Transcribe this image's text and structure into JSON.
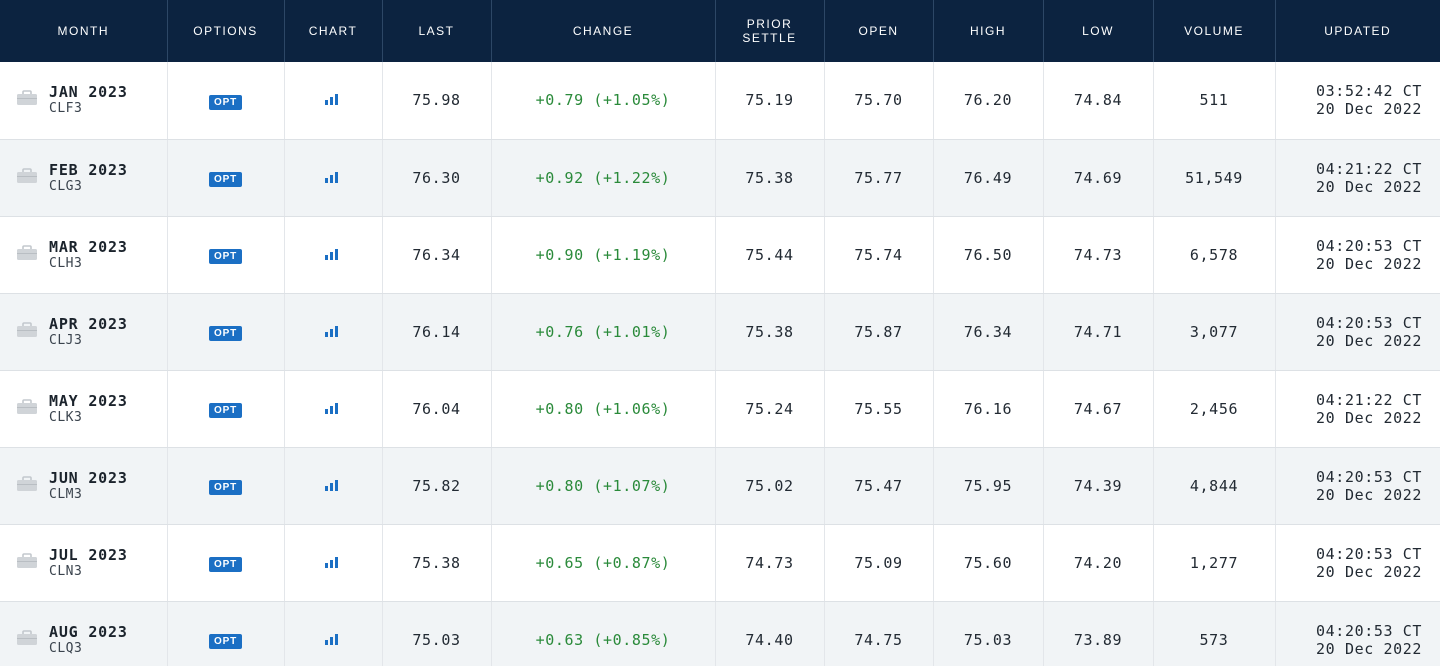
{
  "table": {
    "headers": {
      "month": "MONTH",
      "options": "OPTIONS",
      "chart": "CHART",
      "last": "LAST",
      "change": "CHANGE",
      "prior_settle_1": "PRIOR",
      "prior_settle_2": "SETTLE",
      "open": "OPEN",
      "high": "HIGH",
      "low": "LOW",
      "volume": "VOLUME",
      "updated": "UPDATED"
    },
    "colors": {
      "header_bg": "#0c2340",
      "opt_badge": "#1b6fc4",
      "chart_icon": "#1b6fc4",
      "change_positive": "#2a8a3a",
      "row_alt": "#f1f4f6"
    },
    "icons": {
      "month": "briefcase-icon",
      "chart": "bar-chart-icon"
    },
    "rows": [
      {
        "month": "JAN 2023",
        "code": "CLF3",
        "opt": "OPT",
        "last": "75.98",
        "change": "+0.79 (+1.05%)",
        "prior": "75.19",
        "open": "75.70",
        "high": "76.20",
        "low": "74.84",
        "volume": "511",
        "time": "03:52:42 CT",
        "date": "20 Dec 2022"
      },
      {
        "month": "FEB 2023",
        "code": "CLG3",
        "opt": "OPT",
        "last": "76.30",
        "change": "+0.92 (+1.22%)",
        "prior": "75.38",
        "open": "75.77",
        "high": "76.49",
        "low": "74.69",
        "volume": "51,549",
        "time": "04:21:22 CT",
        "date": "20 Dec 2022"
      },
      {
        "month": "MAR 2023",
        "code": "CLH3",
        "opt": "OPT",
        "last": "76.34",
        "change": "+0.90 (+1.19%)",
        "prior": "75.44",
        "open": "75.74",
        "high": "76.50",
        "low": "74.73",
        "volume": "6,578",
        "time": "04:20:53 CT",
        "date": "20 Dec 2022"
      },
      {
        "month": "APR 2023",
        "code": "CLJ3",
        "opt": "OPT",
        "last": "76.14",
        "change": "+0.76 (+1.01%)",
        "prior": "75.38",
        "open": "75.87",
        "high": "76.34",
        "low": "74.71",
        "volume": "3,077",
        "time": "04:20:53 CT",
        "date": "20 Dec 2022"
      },
      {
        "month": "MAY 2023",
        "code": "CLK3",
        "opt": "OPT",
        "last": "76.04",
        "change": "+0.80 (+1.06%)",
        "prior": "75.24",
        "open": "75.55",
        "high": "76.16",
        "low": "74.67",
        "volume": "2,456",
        "time": "04:21:22 CT",
        "date": "20 Dec 2022"
      },
      {
        "month": "JUN 2023",
        "code": "CLM3",
        "opt": "OPT",
        "last": "75.82",
        "change": "+0.80 (+1.07%)",
        "prior": "75.02",
        "open": "75.47",
        "high": "75.95",
        "low": "74.39",
        "volume": "4,844",
        "time": "04:20:53 CT",
        "date": "20 Dec 2022"
      },
      {
        "month": "JUL 2023",
        "code": "CLN3",
        "opt": "OPT",
        "last": "75.38",
        "change": "+0.65 (+0.87%)",
        "prior": "74.73",
        "open": "75.09",
        "high": "75.60",
        "low": "74.20",
        "volume": "1,277",
        "time": "04:20:53 CT",
        "date": "20 Dec 2022"
      },
      {
        "month": "AUG 2023",
        "code": "CLQ3",
        "opt": "OPT",
        "last": "75.03",
        "change": "+0.63 (+0.85%)",
        "prior": "74.40",
        "open": "74.75",
        "high": "75.03",
        "low": "73.89",
        "volume": "573",
        "time": "04:20:53 CT",
        "date": "20 Dec 2022"
      }
    ]
  }
}
